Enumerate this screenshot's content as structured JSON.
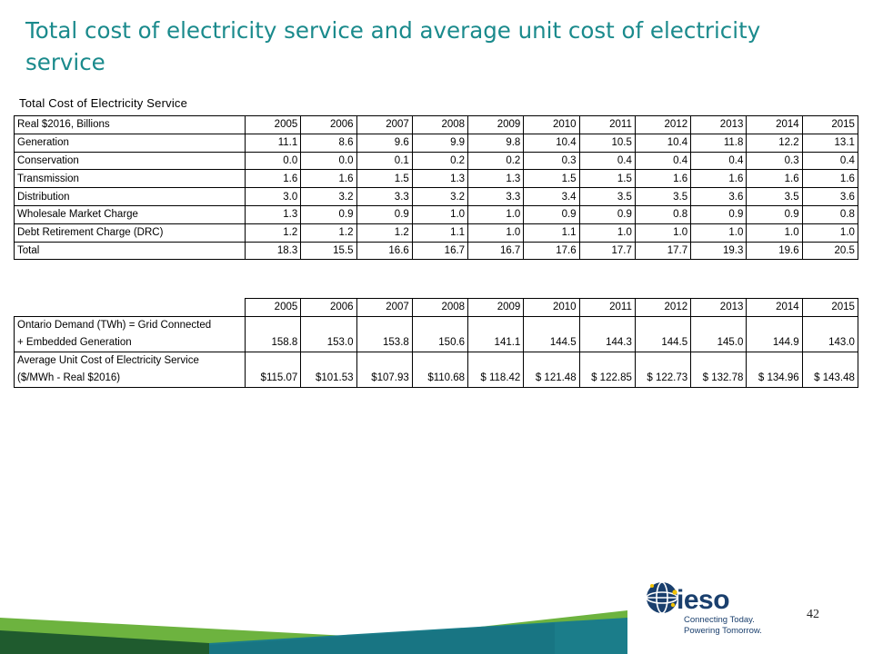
{
  "slide": {
    "title": "Total cost of electricity service and average unit cost of electricity service",
    "page_number": "42"
  },
  "cost_table": {
    "caption": "Total Cost of Electricity Service",
    "header_label": "Real $2016, Billions",
    "years": [
      "2005",
      "2006",
      "2007",
      "2008",
      "2009",
      "2010",
      "2011",
      "2012",
      "2013",
      "2014",
      "2015"
    ],
    "rows": [
      {
        "label": "Generation",
        "values": [
          "11.1",
          "8.6",
          "9.6",
          "9.9",
          "9.8",
          "10.4",
          "10.5",
          "10.4",
          "11.8",
          "12.2",
          "13.1"
        ]
      },
      {
        "label": "Conservation",
        "values": [
          "0.0",
          "0.0",
          "0.1",
          "0.2",
          "0.2",
          "0.3",
          "0.4",
          "0.4",
          "0.4",
          "0.3",
          "0.4"
        ]
      },
      {
        "label": "Transmission",
        "values": [
          "1.6",
          "1.6",
          "1.5",
          "1.3",
          "1.3",
          "1.5",
          "1.5",
          "1.6",
          "1.6",
          "1.6",
          "1.6"
        ]
      },
      {
        "label": "Distribution",
        "values": [
          "3.0",
          "3.2",
          "3.3",
          "3.2",
          "3.3",
          "3.4",
          "3.5",
          "3.5",
          "3.6",
          "3.5",
          "3.6"
        ]
      },
      {
        "label": "Wholesale Market Charge",
        "values": [
          "1.3",
          "0.9",
          "0.9",
          "1.0",
          "1.0",
          "0.9",
          "0.9",
          "0.8",
          "0.9",
          "0.9",
          "0.8"
        ]
      },
      {
        "label": "Debt Retirement Charge (DRC)",
        "values": [
          "1.2",
          "1.2",
          "1.2",
          "1.1",
          "1.0",
          "1.1",
          "1.0",
          "1.0",
          "1.0",
          "1.0",
          "1.0"
        ]
      },
      {
        "label": "Total",
        "values": [
          "18.3",
          "15.5",
          "16.6",
          "16.7",
          "16.7",
          "17.6",
          "17.7",
          "17.7",
          "19.3",
          "19.6",
          "20.5"
        ]
      }
    ]
  },
  "unit_table": {
    "years": [
      "2005",
      "2006",
      "2007",
      "2008",
      "2009",
      "2010",
      "2011",
      "2012",
      "2013",
      "2014",
      "2015"
    ],
    "demand": {
      "label_line1": "Ontario Demand (TWh) = Grid Connected",
      "label_line2": "+ Embedded Generation",
      "values": [
        "158.8",
        "153.0",
        "153.8",
        "150.6",
        "141.1",
        "144.5",
        "144.3",
        "144.5",
        "145.0",
        "144.9",
        "143.0"
      ]
    },
    "unit_cost": {
      "label_line1": "Average Unit Cost of Electricity Service",
      "label_line2": "($/MWh - Real $2016)",
      "values": [
        "$115.07",
        "$101.53",
        "$107.93",
        "$110.68",
        "$ 118.42",
        "$ 121.48",
        "$ 122.85",
        "$ 122.73",
        "$ 132.78",
        "$ 134.96",
        "$ 143.48"
      ]
    }
  },
  "logo": {
    "wordmark": "ieso",
    "tagline_line1": "Connecting Today.",
    "tagline_line2": "Powering Tomorrow."
  },
  "colors": {
    "title": "#1a8a8c",
    "footer_green": "#6db33f",
    "footer_dark_green": "#1f5b2e",
    "footer_teal": "#1b7d8a",
    "logo_blue": "#1a3f6d",
    "logo_yellow": "#f2c300"
  }
}
